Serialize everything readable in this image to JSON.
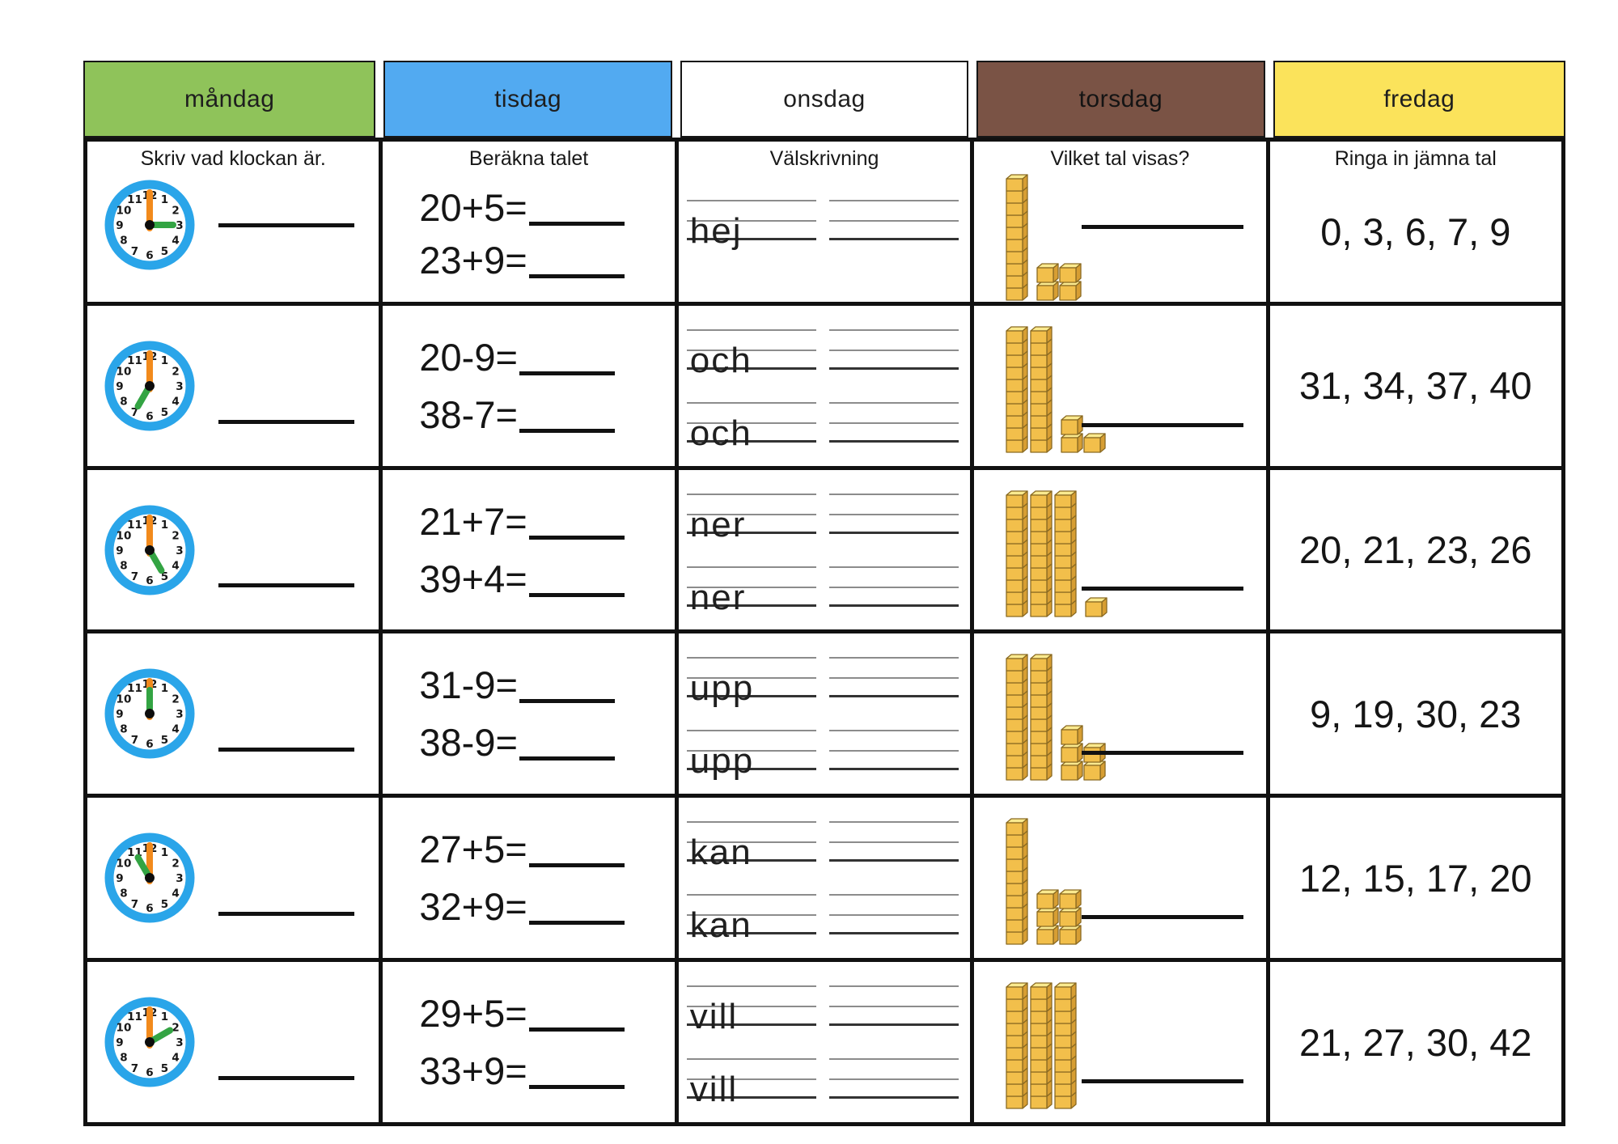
{
  "page": {
    "background": "#ffffff",
    "grid_color": "#111111"
  },
  "header": {
    "days": [
      {
        "label": "måndag",
        "color": "#8FC35A",
        "text_color": "#1e1e1e"
      },
      {
        "label": "tisdag",
        "color": "#52AAF1",
        "text_color": "#1e1e1e"
      },
      {
        "label": "onsdag",
        "color": "#ffffff",
        "text_color": "#1e1e1e"
      },
      {
        "label": "torsdag",
        "color": "#7A5345",
        "text_color": "#141414"
      },
      {
        "label": "fredag",
        "color": "#FBE35B",
        "text_color": "#1e1e1e"
      }
    ]
  },
  "columns": {
    "monday": {
      "instruction": "Skriv vad klockan är.",
      "clocks": [
        {
          "hour": 3,
          "minute": 0
        },
        {
          "hour": 7,
          "minute": 0
        },
        {
          "hour": 5,
          "minute": 0
        },
        {
          "hour": 12,
          "minute": 0
        },
        {
          "hour": 11,
          "minute": 0
        },
        {
          "hour": 2,
          "minute": 0
        }
      ]
    },
    "tuesday": {
      "instruction": "Beräkna talet",
      "problems": [
        [
          "20+5=",
          "23+9="
        ],
        [
          "20-9=",
          "38-7="
        ],
        [
          "21+7=",
          "39+4="
        ],
        [
          "31-9=",
          "38-9="
        ],
        [
          "27+5=",
          "32+9="
        ],
        [
          "29+5=",
          "33+9="
        ]
      ]
    },
    "wednesday": {
      "instruction": "Välskrivning",
      "words": [
        [
          "hej"
        ],
        [
          "och",
          "och"
        ],
        [
          "ner",
          "ner"
        ],
        [
          "upp",
          "upp"
        ],
        [
          "kan",
          "kan"
        ],
        [
          "vill",
          "vill"
        ]
      ]
    },
    "thursday": {
      "instruction": "Vilket tal visas?",
      "blocks": [
        {
          "tens": 1,
          "ones": [
            2,
            2
          ]
        },
        {
          "tens": 2,
          "ones": [
            2,
            1
          ]
        },
        {
          "tens": 3,
          "ones": [
            1
          ]
        },
        {
          "tens": 2,
          "ones": [
            3,
            2
          ]
        },
        {
          "tens": 1,
          "ones": [
            3,
            3
          ]
        },
        {
          "tens": 3,
          "ones": []
        }
      ]
    },
    "friday": {
      "instruction": "Ringa in jämna tal",
      "numbers": [
        "0, 3, 6, 7, 9",
        "31, 34, 37, 40",
        "20, 21, 23, 26",
        "9, 19, 30, 23",
        "12, 15, 17, 20",
        "21, 27, 30, 42"
      ]
    }
  },
  "colors": {
    "clock_rim": "#2AA5E9",
    "minute_hand": "#F28A1C",
    "hour_hand": "#33A443",
    "block_front": "#F2BF4B",
    "block_side": "#D79E33",
    "block_top": "#FAEA8F",
    "block_stroke": "#8A6A22",
    "answer_line": "#111111"
  }
}
